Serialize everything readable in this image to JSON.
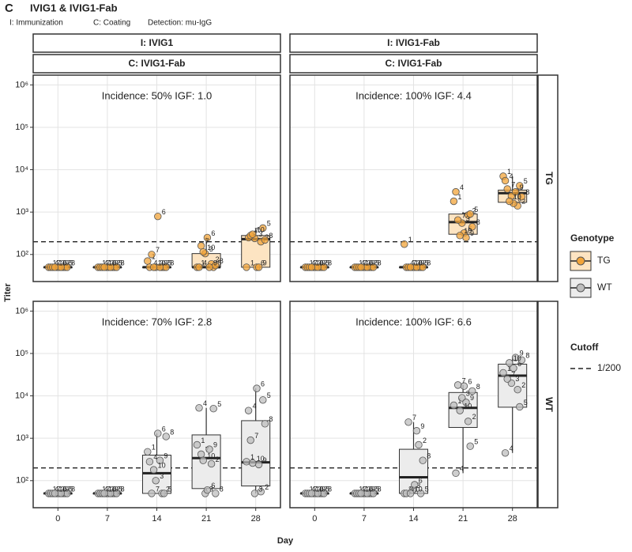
{
  "chart_data": {
    "type": "box",
    "tag": "C",
    "title": "IVIG1 & IVIG1-Fab",
    "notes": [
      "I: Immunization",
      "C: Coating",
      "Detection: mu-IgG"
    ],
    "x_label": "Day",
    "y_label": "Titer",
    "categories": [
      0,
      7,
      14,
      21,
      28
    ],
    "log_y": true,
    "grid": true,
    "ylim": [
      23,
      1700000
    ],
    "yticks": [
      {
        "value": 100,
        "label": "10²"
      },
      {
        "value": 1000,
        "label": "10³"
      },
      {
        "value": 10000,
        "label": "10⁴"
      },
      {
        "value": 100000,
        "label": "10⁵"
      },
      {
        "value": 1000000,
        "label": "10⁶"
      }
    ],
    "columns": [
      {
        "immunization": "I: IVIG1",
        "coating": "C: IVIG1-Fab"
      },
      {
        "immunization": "I: IVIG1-Fab",
        "coating": "C: IVIG1-Fab"
      }
    ],
    "rows": [
      "TG",
      "WT"
    ],
    "legend": {
      "title": "Genotype",
      "position": "right"
    },
    "series": [
      {
        "name": "TG",
        "color": "#f2a43a",
        "box_color": "#fde4c2"
      },
      {
        "name": "WT",
        "color": "#bdbdbd",
        "box_color": "#ececec"
      }
    ],
    "cutoff": {
      "title": "Cutoff",
      "label": "1/200",
      "value": 200
    },
    "point_ids": [
      1,
      2,
      3,
      4,
      5,
      6,
      7,
      8,
      9,
      10
    ],
    "panels": [
      {
        "annotation": "Incidence: 50% IGF: 1.0",
        "groups": [
          {
            "points": [
              50,
              50,
              50,
              50,
              50,
              50,
              50,
              50,
              50,
              50
            ],
            "box": [
              50,
              50,
              50,
              50,
              50
            ]
          },
          {
            "points": [
              50,
              50,
              50,
              50,
              50,
              50,
              50,
              50,
              50,
              50
            ],
            "box": [
              50,
              50,
              50,
              50,
              50
            ]
          },
          {
            "points": [
              70,
              50,
              50,
              50,
              50,
              790,
              100,
              50,
              50,
              50
            ],
            "box": [
              50,
              50,
              50,
              50,
              50
            ]
          },
          {
            "points": [
              50,
              60,
              105,
              50,
              50,
              250,
              160,
              55,
              50,
              115
            ],
            "box": [
              50,
              50,
              50,
              105,
              250
            ]
          },
          {
            "points": [
              50,
              200,
              240,
              250,
              420,
              50,
              280,
              220,
              50,
              300
            ],
            "box": [
              50,
              50,
              230,
              280,
              420
            ]
          }
        ]
      },
      {
        "annotation": "Incidence: 100% IGF: 4.4",
        "groups": [
          {
            "points": [
              50,
              50,
              50,
              50,
              50,
              50,
              50,
              50,
              50,
              50
            ],
            "box": [
              50,
              50,
              50,
              50,
              50
            ]
          },
          {
            "points": [
              50,
              50,
              50,
              50,
              50,
              50,
              50,
              50,
              50,
              50
            ],
            "box": [
              50,
              50,
              50,
              50,
              50
            ]
          },
          {
            "points": [
              175,
              50,
              50,
              50,
              50,
              50,
              50,
              50,
              50,
              50
            ],
            "box": [
              50,
              50,
              50,
              50,
              50
            ]
          },
          {
            "points": [
              1800,
              850,
              550,
              3000,
              900,
              320,
              650,
              450,
              250,
              280
            ],
            "box": [
              250,
              300,
              580,
              900,
              1000
            ]
          },
          {
            "points": [
              7000,
              1400,
              2400,
              5500,
              4200,
              1600,
              3500,
              2300,
              3000,
              1800
            ],
            "box": [
              1400,
              1700,
              2800,
              3300,
              7000
            ]
          }
        ]
      },
      {
        "annotation": "Incidence: 70% IGF: 2.8",
        "groups": [
          {
            "points": [
              50,
              50,
              50,
              50,
              50,
              50,
              50,
              50,
              50,
              50
            ],
            "box": [
              50,
              50,
              50,
              50,
              50
            ]
          },
          {
            "points": [
              50,
              50,
              50,
              50,
              50,
              50,
              50,
              50,
              50,
              50
            ],
            "box": [
              50,
              50,
              50,
              50,
              50
            ]
          },
          {
            "points": [
              480,
              50,
              100,
              280,
              50,
              1300,
              50,
              1100,
              300,
              180
            ],
            "box": [
              50,
              50,
              150,
              400,
              1300
            ]
          },
          {
            "points": [
              700,
              250,
              50,
              5200,
              5000,
              60,
              420,
              50,
              550,
              300
            ],
            "box": [
              50,
              65,
              340,
              1200,
              5200
            ]
          },
          {
            "points": [
              280,
              55,
              50,
              4500,
              8000,
              15000,
              900,
              2200,
              240,
              260
            ],
            "box": [
              50,
              75,
              270,
              2600,
              15000
            ]
          }
        ]
      },
      {
        "annotation": "Incidence: 100% IGF: 6.6",
        "groups": [
          {
            "points": [
              50,
              50,
              50,
              50,
              50,
              50,
              50,
              50,
              50,
              50
            ],
            "box": [
              50,
              50,
              50,
              50,
              50
            ]
          },
          {
            "points": [
              50,
              50,
              50,
              50,
              50,
              50,
              50,
              50,
              50,
              50
            ],
            "box": [
              50,
              50,
              50,
              50,
              50
            ]
          },
          {
            "points": [
              50,
              700,
              60,
              50,
              50,
              80,
              2400,
              300,
              1500,
              50
            ],
            "box": [
              50,
              50,
              120,
              550,
              2400
            ]
          },
          {
            "points": [
              6000,
              2500,
              9000,
              150,
              650,
              17000,
              18000,
              13000,
              7000,
              4500
            ],
            "box": [
              150,
              1800,
              5200,
              12000,
              18000
            ]
          },
          {
            "points": [
              35000,
              14000,
              20000,
              450,
              5500,
              45000,
              25000,
              70000,
              80000,
              60000
            ],
            "box": [
              450,
              5400,
              30000,
              56000,
              80000
            ]
          }
        ]
      }
    ]
  }
}
